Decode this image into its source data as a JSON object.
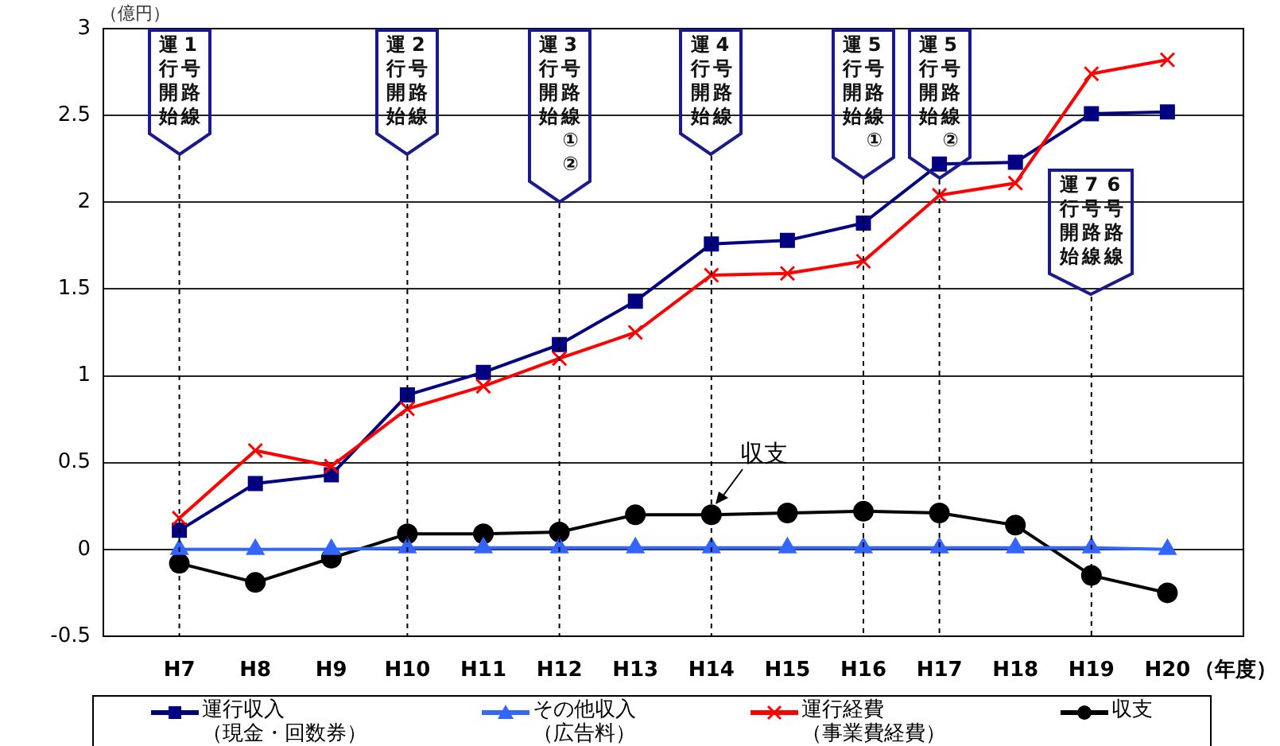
{
  "chart_data": {
    "type": "line",
    "ylabel": "（億円）",
    "xlabel": "（年度）",
    "categories": [
      "H7",
      "H8",
      "H9",
      "H10",
      "H11",
      "H12",
      "H13",
      "H14",
      "H15",
      "H16",
      "H17",
      "H18",
      "H19",
      "H20"
    ],
    "series": [
      {
        "name": "運行収入（現金・回数券）",
        "color": "#000080",
        "marker": "square",
        "values": [
          0.11,
          0.38,
          0.43,
          0.89,
          1.02,
          1.18,
          1.43,
          1.76,
          1.78,
          1.88,
          2.22,
          2.23,
          2.51,
          2.52
        ]
      },
      {
        "name": "その他収入（広告料）",
        "color": "#3366ff",
        "marker": "triangle",
        "values": [
          0,
          0,
          0,
          0.01,
          0.01,
          0.01,
          0.01,
          0.01,
          0.01,
          0.01,
          0.01,
          0.01,
          0.01,
          0
        ]
      },
      {
        "name": "運行経費（事業費経費）",
        "color": "#ff0000",
        "marker": "cross",
        "values": [
          0.18,
          0.57,
          0.48,
          0.81,
          0.94,
          1.1,
          1.25,
          1.58,
          1.59,
          1.66,
          2.04,
          2.11,
          2.74,
          2.82
        ]
      },
      {
        "name": "収支",
        "color": "#000000",
        "marker": "circle",
        "values": [
          -0.08,
          -0.19,
          -0.05,
          0.09,
          0.09,
          0.1,
          0.2,
          0.2,
          0.21,
          0.22,
          0.21,
          0.14,
          -0.15,
          -0.25
        ]
      }
    ],
    "ylim": [
      -0.5,
      3
    ],
    "yticks": [
      -0.5,
      0,
      0.5,
      1,
      1.5,
      2,
      2.5,
      3
    ],
    "grid": "y",
    "legend": "bottom",
    "ref_lines": [
      {
        "axis": "x",
        "value": "H7",
        "label": "1号路線運行開始",
        "line_style": "dashed"
      },
      {
        "axis": "x",
        "value": "H10",
        "label": "2号路線運行開始",
        "line_style": "dashed"
      },
      {
        "axis": "x",
        "value": "H12",
        "label": "3号路線①②運行開始",
        "line_style": "dashed"
      },
      {
        "axis": "x",
        "value": "H14",
        "label": "4号路線運行開始",
        "line_style": "dashed"
      },
      {
        "axis": "x",
        "value": "H16",
        "label": "5号路線①運行開始",
        "line_style": "dashed"
      },
      {
        "axis": "x",
        "value": "H17",
        "label": "5号路線②運行開始",
        "line_style": "dashed"
      },
      {
        "axis": "x",
        "value": "H19",
        "label": "6号路線7号路線運行開始",
        "line_style": "dashed"
      }
    ],
    "annotations": [
      {
        "text": "収支",
        "x": "H14",
        "y": 0.2
      }
    ]
  }
}
